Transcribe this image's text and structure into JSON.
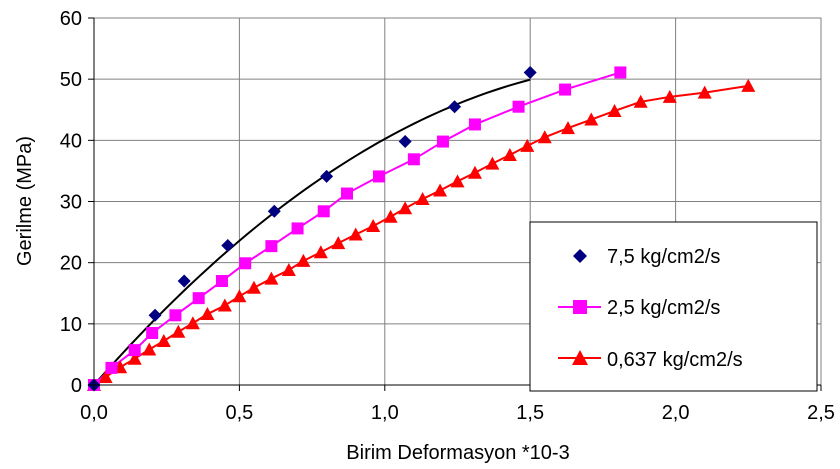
{
  "chart_data": {
    "type": "scatter",
    "title": "",
    "xlabel": "Birim Deformasyon *10-3",
    "ylabel": "Gerilme (MPa)",
    "xlim": [
      0,
      2.5
    ],
    "ylim": [
      0,
      60
    ],
    "x_ticks": [
      "0,0",
      "0,5",
      "1,0",
      "1,5",
      "2,0",
      "2,5"
    ],
    "y_ticks": [
      "0",
      "10",
      "20",
      "30",
      "40",
      "50",
      "60"
    ],
    "grid": "major gridlines (vertical and horizontal)",
    "legend_position": "bottom-right",
    "series": [
      {
        "name": "7,5 kg/cm2/s",
        "color": "#000080",
        "marker": "diamond",
        "line": "smooth black trendline",
        "line_color": "#000000",
        "x": [
          0.0,
          0.21,
          0.31,
          0.46,
          0.62,
          0.8,
          1.07,
          1.24,
          1.5
        ],
        "y": [
          0.0,
          11.4,
          17.0,
          22.8,
          28.4,
          34.1,
          39.8,
          45.5,
          51.1
        ]
      },
      {
        "name": "2,5 kg/cm2/s",
        "color": "#ff00ff",
        "marker": "square",
        "line": "connected",
        "line_color": "#ff00ff",
        "x": [
          0.0,
          0.06,
          0.14,
          0.2,
          0.28,
          0.36,
          0.44,
          0.52,
          0.61,
          0.7,
          0.79,
          0.87,
          0.98,
          1.1,
          1.2,
          1.31,
          1.46,
          1.62,
          1.81
        ],
        "y": [
          0.0,
          2.8,
          5.7,
          8.5,
          11.4,
          14.2,
          17.0,
          19.9,
          22.7,
          25.6,
          28.4,
          31.3,
          34.1,
          36.9,
          39.8,
          42.6,
          45.5,
          48.3,
          51.1
        ]
      },
      {
        "name": "0,637 kg/cm2/s",
        "color": "#ff0000",
        "marker": "triangle",
        "line": "connected",
        "line_color": "#ff0000",
        "x": [
          0.0,
          0.04,
          0.09,
          0.14,
          0.19,
          0.24,
          0.29,
          0.34,
          0.39,
          0.45,
          0.5,
          0.55,
          0.61,
          0.67,
          0.72,
          0.78,
          0.84,
          0.9,
          0.96,
          1.02,
          1.07,
          1.13,
          1.19,
          1.25,
          1.31,
          1.37,
          1.43,
          1.49,
          1.55,
          1.63,
          1.71,
          1.79,
          1.88,
          1.98,
          2.1,
          2.25
        ],
        "y": [
          0.0,
          1.3,
          2.9,
          4.3,
          5.8,
          7.2,
          8.7,
          10.1,
          11.6,
          13.0,
          14.5,
          15.9,
          17.4,
          18.8,
          20.3,
          21.7,
          23.2,
          24.6,
          26.0,
          27.5,
          28.9,
          30.4,
          31.8,
          33.3,
          34.7,
          36.2,
          37.6,
          39.1,
          40.5,
          42.0,
          43.4,
          44.8,
          46.3,
          47.1,
          47.8,
          48.9
        ]
      }
    ]
  }
}
